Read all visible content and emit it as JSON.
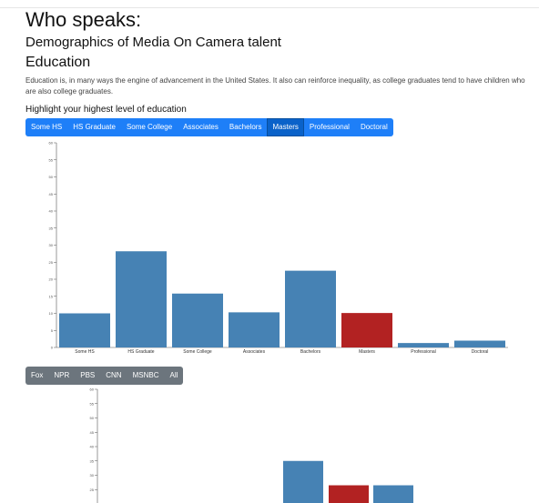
{
  "page": {
    "title": "Who speaks:",
    "subtitle": "Demographics of Media On Camera talent",
    "section": "Education",
    "intro": "Education is, in many ways the engine of advancement in the United States. It also can reinforce inequality, as college graduates tend to have children who are also college graduates.",
    "highlight_prompt": "Highlight your highest level of education"
  },
  "education_buttons": [
    {
      "label": "Some HS",
      "active": false
    },
    {
      "label": "HS Graduate",
      "active": false
    },
    {
      "label": "Some College",
      "active": false
    },
    {
      "label": "Associates",
      "active": false
    },
    {
      "label": "Bachelors",
      "active": false
    },
    {
      "label": "Masters",
      "active": true
    },
    {
      "label": "Professional",
      "active": false
    },
    {
      "label": "Doctoral",
      "active": false
    }
  ],
  "network_buttons": [
    {
      "label": "Fox"
    },
    {
      "label": "NPR"
    },
    {
      "label": "PBS"
    },
    {
      "label": "CNN"
    },
    {
      "label": "MSNBC"
    },
    {
      "label": "All"
    }
  ],
  "colors": {
    "bar": "#4682b4",
    "highlight": "#b22222",
    "primary": "#1e7ff8",
    "secondary": "#6c757d"
  },
  "chart_data": [
    {
      "type": "bar",
      "categories": [
        "Some HS",
        "HS Graduate",
        "Some College",
        "Associates",
        "Bachelors",
        "Masters",
        "Professional",
        "Doctoral"
      ],
      "values": [
        10,
        28.2,
        15.8,
        10.3,
        22.5,
        10.1,
        1.3,
        2
      ],
      "highlighted": "Masters",
      "ylim": [
        0,
        60
      ],
      "yticks": [
        0,
        5,
        10,
        15,
        20,
        25,
        30,
        35,
        40,
        45,
        50,
        55,
        60
      ],
      "grid": false
    },
    {
      "type": "bar",
      "visible_bars": [
        {
          "value": 35,
          "highlighted": false
        },
        {
          "value": 26.5,
          "highlighted": true
        },
        {
          "value": 26.5,
          "highlighted": false
        }
      ],
      "ylim": [
        0,
        60
      ],
      "yticks": [
        20,
        25,
        30,
        35,
        40,
        45,
        50,
        55,
        60
      ],
      "grid": false
    }
  ]
}
